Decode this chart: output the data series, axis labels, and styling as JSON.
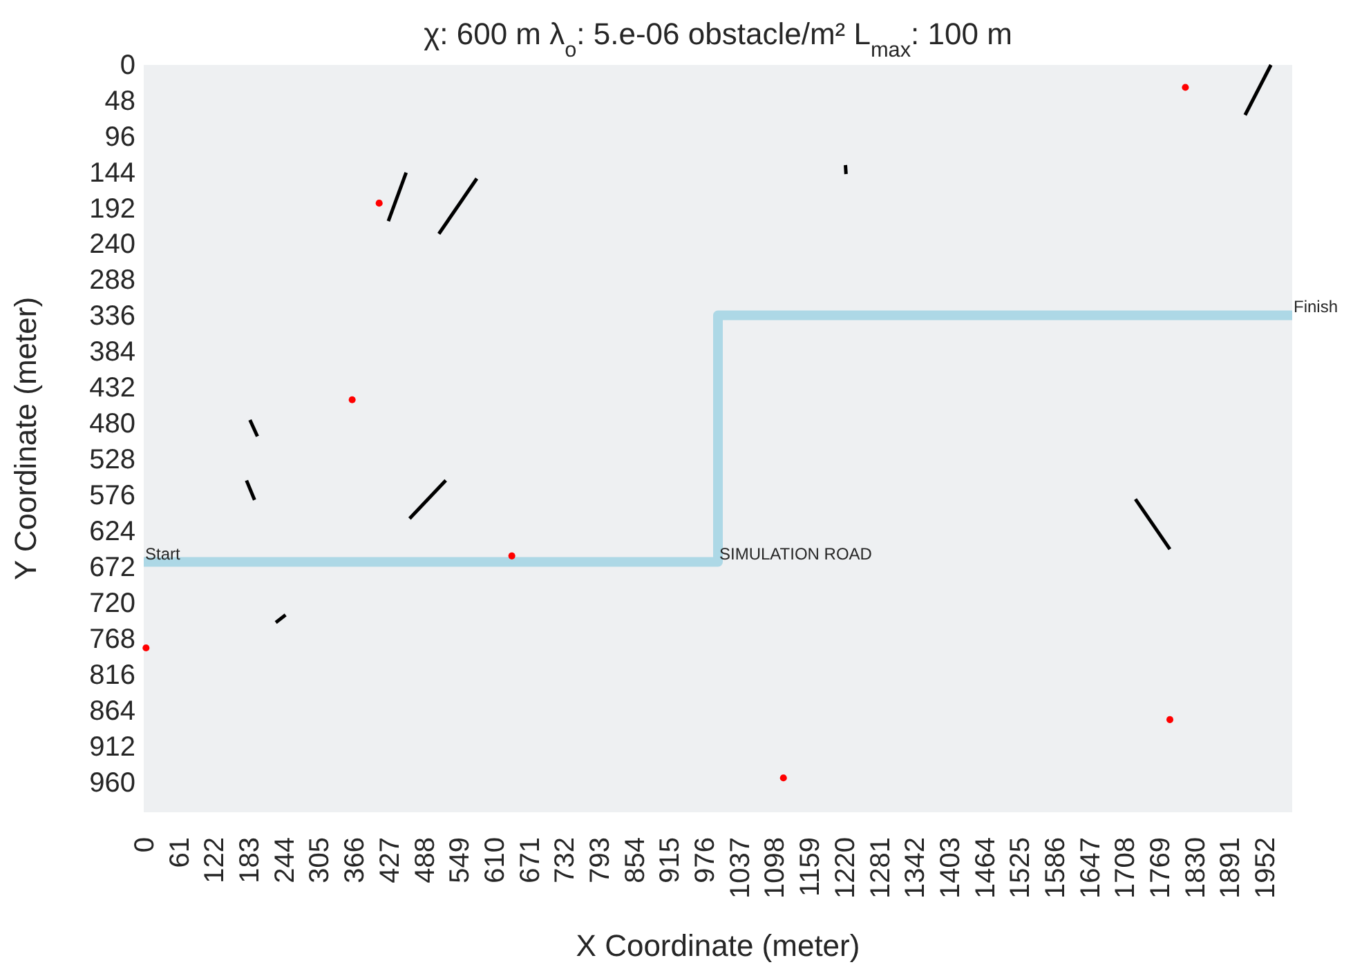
{
  "chart_data": {
    "type": "line",
    "title": "χ: 600 m λ$_{o}$: 5.e-06 obstacle/m² L$_{max}$: 100 m",
    "xlabel": "X Coordinate (meter)",
    "ylabel": "Y Coordinate (meter)",
    "xlim": [
      0,
      2000
    ],
    "ylim": [
      1000,
      0
    ],
    "xticks": [
      0,
      61,
      122,
      183,
      244,
      305,
      366,
      427,
      488,
      549,
      610,
      671,
      732,
      793,
      854,
      915,
      976,
      1037,
      1098,
      1159,
      1220,
      1281,
      1342,
      1403,
      1464,
      1525,
      1586,
      1647,
      1708,
      1769,
      1830,
      1891,
      1952
    ],
    "yticks": [
      0,
      48,
      96,
      144,
      192,
      240,
      288,
      336,
      384,
      432,
      480,
      528,
      576,
      624,
      672,
      720,
      768,
      816,
      864,
      912,
      960
    ],
    "grid": false,
    "series": [
      {
        "type": "step",
        "color": "#add8e6",
        "x": [
          0,
          1000,
          2000
        ],
        "values": [
          665,
          335,
          335
        ]
      },
      {
        "color": "#000000",
        "x": [
          1918,
          1963
        ],
        "values": [
          67,
          0
        ]
      },
      {
        "color": "#000000",
        "x": [
          426,
          457
        ],
        "values": [
          209,
          144
        ]
      },
      {
        "color": "#000000",
        "x": [
          514,
          580
        ],
        "values": [
          226,
          152
        ]
      },
      {
        "color": "#000000",
        "x": [
          185,
          198
        ],
        "values": [
          475,
          497
        ]
      },
      {
        "color": "#000000",
        "x": [
          179,
          193
        ],
        "values": [
          556,
          582
        ]
      },
      {
        "color": "#000000",
        "x": [
          463,
          526
        ],
        "values": [
          607,
          556
        ]
      },
      {
        "color": "#000000",
        "x": [
          230,
          247
        ],
        "values": [
          746,
          736
        ]
      },
      {
        "color": "#000000",
        "x": [
          1222,
          1223
        ],
        "values": [
          134,
          146
        ]
      },
      {
        "color": "#000000",
        "x": [
          1727,
          1787
        ],
        "values": [
          581,
          648
        ]
      },
      {
        "type": "scatter",
        "color": "#ff0000",
        "marker": "circle",
        "x": [
          1814,
          410,
          363,
          641,
          4,
          1114,
          1787
        ],
        "values": [
          30,
          185,
          448,
          657,
          780,
          954,
          876
        ]
      }
    ],
    "annotations": [
      {
        "text": "Start",
        "x": 0,
        "y": 665
      },
      {
        "text": "SIMULATION ROAD",
        "x": 1000,
        "y": 665
      },
      {
        "text": "Finish",
        "x": 2000,
        "y": 335
      }
    ]
  }
}
